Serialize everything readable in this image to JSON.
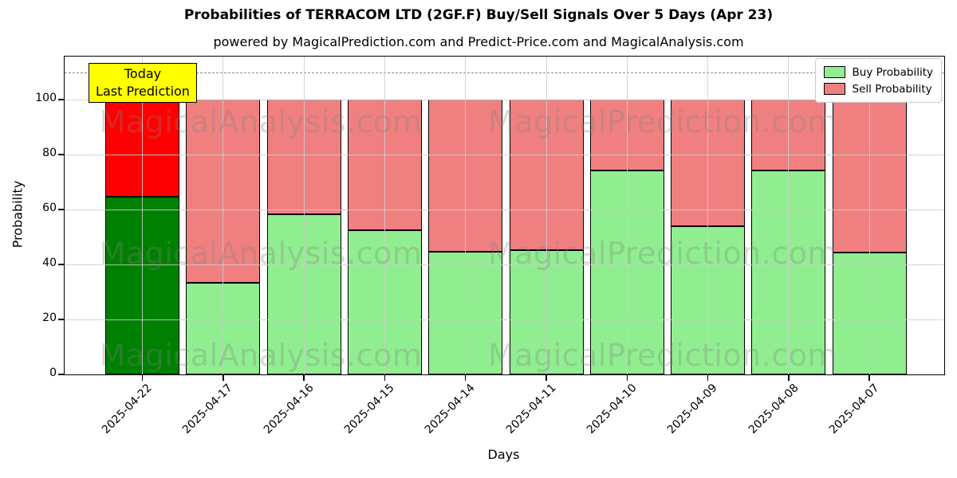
{
  "chart_data": {
    "type": "bar",
    "stacked": true,
    "title": "Probabilities of TERRACOM LTD (2GF.F) Buy/Sell Signals Over 5 Days (Apr 23)",
    "subtitle": "powered by MagicalPrediction.com and Predict-Price.com and MagicalAnalysis.com",
    "xlabel": "Days",
    "ylabel": "Probability",
    "categories": [
      "2025-04-22",
      "2025-04-17",
      "2025-04-16",
      "2025-04-15",
      "2025-04-14",
      "2025-04-11",
      "2025-04-10",
      "2025-04-09",
      "2025-04-08",
      "2025-04-07"
    ],
    "series": [
      {
        "name": "Buy Probability",
        "values": [
          64.6,
          33.4,
          58.4,
          52.6,
          44.6,
          45.3,
          74.2,
          53.9,
          74.2,
          44.5
        ],
        "color": "#90ee90",
        "today_color": "#008000"
      },
      {
        "name": "Sell Probability",
        "values": [
          35.4,
          66.6,
          41.6,
          47.4,
          55.4,
          54.7,
          25.8,
          46.1,
          25.8,
          55.5
        ],
        "color": "#f08080",
        "today_color": "#ff0000"
      }
    ],
    "today_index": 0,
    "yticks": [
      0,
      20,
      40,
      60,
      80,
      100
    ],
    "ylim": [
      0,
      115.7
    ],
    "dashed_line_y": 110,
    "grid": true,
    "legend_position": "upper right",
    "bar_edge_color": "#000000"
  },
  "annotation": {
    "lines": [
      "Today",
      "Last Prediction"
    ],
    "bg_color": "#ffff00"
  },
  "watermarks": {
    "color": "rgba(128,128,128,0.3)",
    "rows": [
      {
        "left": "MagicalAnalysis.com",
        "right": "MagicalPrediction.com"
      },
      {
        "left": "MagicalAnalysis.com",
        "right": "MagicalPrediction.com"
      },
      {
        "left": "MagicalAnalysis.com",
        "right": "MagicalPrediction.com"
      }
    ]
  }
}
